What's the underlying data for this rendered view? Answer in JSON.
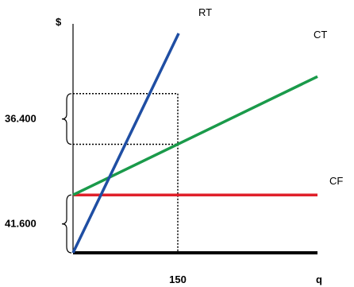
{
  "chart_data": {
    "type": "line",
    "title": "",
    "xlabel": "q",
    "ylabel": "$",
    "xlim": [
      0,
      230
    ],
    "ylim": [
      0,
      170000
    ],
    "grid": false,
    "legend": "none",
    "x_ticks": [
      {
        "value": 150,
        "label": "150"
      }
    ],
    "series": [
      {
        "name": "RT",
        "color": "#1f4ea3",
        "points": [
          [
            0,
            0
          ],
          [
            150,
            156000
          ],
          [
            236,
            246000
          ]
        ]
      },
      {
        "name": "CT",
        "color": "#1a9a4a",
        "points": [
          [
            0,
            41600
          ],
          [
            150,
            78000
          ],
          [
            450,
            151000
          ]
        ]
      },
      {
        "name": "CF",
        "color": "#e0202a",
        "points": [
          [
            0,
            41600
          ],
          [
            450,
            41600
          ]
        ]
      }
    ],
    "annotations": [
      {
        "text": "41.600",
        "y_from": 0,
        "y_to": 41600
      },
      {
        "text": "36.400",
        "y_from": 78000,
        "y_to": 114400
      }
    ],
    "reference_lines": {
      "x": 150,
      "y_levels": [
        78000,
        114400
      ]
    }
  }
}
